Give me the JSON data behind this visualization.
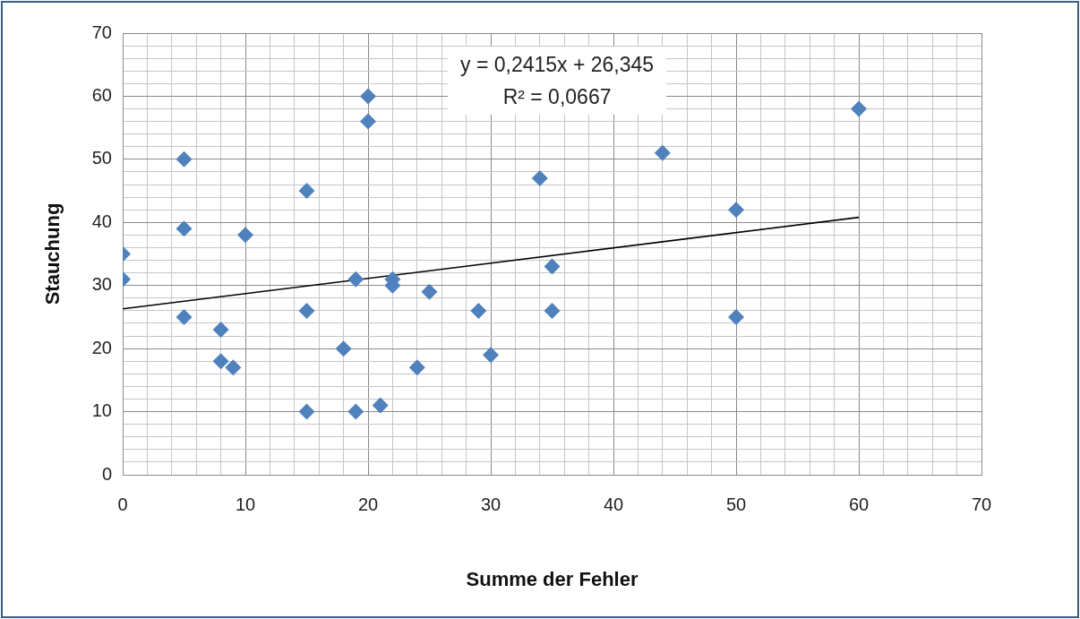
{
  "chart_data": {
    "type": "scatter",
    "xlabel": "Summe der Fehler",
    "ylabel": "Stauchung",
    "annotations": [
      "y = 0,2415x + 26,345",
      "R² = 0,0667"
    ],
    "xlim": [
      0,
      70
    ],
    "ylim": [
      0,
      70
    ],
    "xticks": [
      0,
      {
        "value": 2,
        "label": null
      },
      {
        "value": 4,
        "label": null
      },
      {
        "value": 6,
        "label": null
      },
      {
        "value": 8,
        "label": null
      },
      10,
      {
        "value": 12,
        "label": null
      },
      {
        "value": 14,
        "label": null
      },
      {
        "value": 16,
        "label": null
      },
      {
        "value": 18,
        "label": null
      },
      20,
      {
        "value": 22,
        "label": null
      },
      {
        "value": 24,
        "label": null
      },
      {
        "value": 26,
        "label": null
      },
      {
        "value": 28,
        "label": null
      },
      30,
      {
        "value": 32,
        "label": null
      },
      {
        "value": 34,
        "label": null
      },
      {
        "value": 36,
        "label": null
      },
      {
        "value": 38,
        "label": null
      },
      40,
      {
        "value": 42,
        "label": null
      },
      {
        "value": 44,
        "label": null
      },
      {
        "value": 46,
        "label": null
      },
      {
        "value": 48,
        "label": null
      },
      50,
      {
        "value": 52,
        "label": null
      },
      {
        "value": 54,
        "label": null
      },
      {
        "value": 56,
        "label": null
      },
      {
        "value": 58,
        "label": null
      },
      60,
      {
        "value": 62,
        "label": null
      },
      {
        "value": 64,
        "label": null
      },
      {
        "value": 66,
        "label": null
      },
      {
        "value": 68,
        "label": null
      },
      70
    ],
    "yticks": [
      0,
      {
        "value": 2,
        "label": null
      },
      {
        "value": 4,
        "label": null
      },
      {
        "value": 6,
        "label": null
      },
      {
        "value": 8,
        "label": null
      },
      10,
      {
        "value": 12,
        "label": null
      },
      {
        "value": 14,
        "label": null
      },
      {
        "value": 16,
        "label": null
      },
      {
        "value": 18,
        "label": null
      },
      20,
      {
        "value": 22,
        "label": null
      },
      {
        "value": 24,
        "label": null
      },
      {
        "value": 26,
        "label": null
      },
      {
        "value": 28,
        "label": null
      },
      30,
      {
        "value": 32,
        "label": null
      },
      {
        "value": 34,
        "label": null
      },
      {
        "value": 36,
        "label": null
      },
      {
        "value": 38,
        "label": null
      },
      40,
      {
        "value": 42,
        "label": null
      },
      {
        "value": 44,
        "label": null
      },
      {
        "value": 46,
        "label": null
      },
      {
        "value": 48,
        "label": null
      },
      50,
      {
        "value": 52,
        "label": null
      },
      {
        "value": 54,
        "label": null
      },
      {
        "value": 56,
        "label": null
      },
      {
        "value": 58,
        "label": null
      },
      60,
      {
        "value": 62,
        "label": null
      },
      {
        "value": 64,
        "label": null
      },
      {
        "value": 66,
        "label": null
      },
      {
        "value": 68,
        "label": null
      },
      70
    ],
    "grid": true,
    "legend": false,
    "marker": "diamond",
    "series": [
      {
        "color": "#4f81bd",
        "x": [
          0,
          0,
          5,
          5,
          5,
          8,
          8,
          9,
          10,
          15,
          15,
          15,
          18,
          19,
          19,
          20,
          20,
          21,
          22,
          22,
          24,
          25,
          29,
          30,
          34,
          35,
          35,
          44,
          50,
          50,
          60
        ],
        "values": [
          35,
          31,
          50,
          39,
          25,
          23,
          18,
          17,
          38,
          45,
          26,
          10,
          20,
          31,
          10,
          60,
          56,
          11,
          31,
          30,
          17,
          29,
          26,
          19,
          47,
          33,
          26,
          51,
          42,
          25,
          58
        ]
      },
      {
        "type": "line",
        "color": "#000000",
        "marker": "none",
        "x": [
          0,
          60
        ],
        "values": [
          26.3,
          40.8
        ]
      }
    ]
  }
}
